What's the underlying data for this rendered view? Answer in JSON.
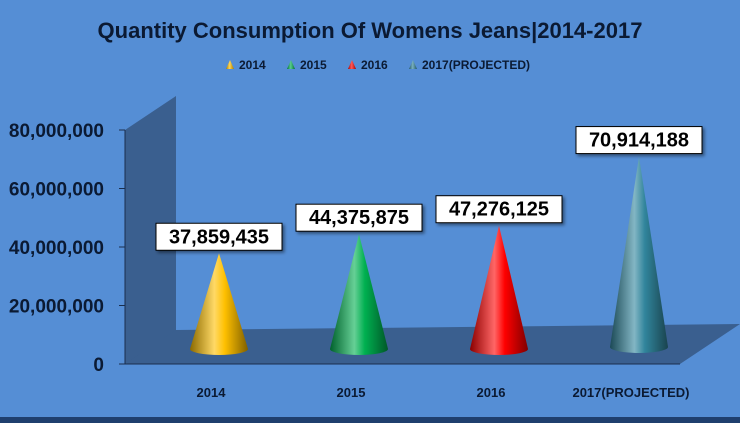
{
  "chart_data": {
    "type": "bar",
    "style": "3d-cone",
    "title": "Quantity Consumption Of Womens Jeans|2014-2017",
    "categories": [
      "2014",
      "2015",
      "2016",
      "2017(PROJECTED)"
    ],
    "series": [
      {
        "name": "2014",
        "values": [
          37859435,
          0,
          0,
          0
        ],
        "color": "#ffc000"
      },
      {
        "name": "2015",
        "values": [
          0,
          44375875,
          0,
          0
        ],
        "color": "#00b050"
      },
      {
        "name": "2016",
        "values": [
          0,
          0,
          47276125,
          0
        ],
        "color": "#ff0000"
      },
      {
        "name": "2017(PROJECTED)",
        "values": [
          0,
          0,
          0,
          70914188
        ],
        "color": "#31859c"
      }
    ],
    "values": [
      37859435,
      44375875,
      47276125,
      70914188
    ],
    "value_labels": [
      "37,859,435",
      "44,375,875",
      "47,276,125",
      "70,914,188"
    ],
    "yticks": [
      0,
      20000000,
      40000000,
      60000000,
      80000000
    ],
    "ytick_labels": [
      "0",
      "20,000,000",
      "40,000,000",
      "60,000,000",
      "80,000,000"
    ],
    "ylim": [
      0,
      80000000
    ],
    "xlabel": "",
    "ylabel": "",
    "grid": false,
    "legend_position": "top",
    "background_color": "#558ed5"
  }
}
